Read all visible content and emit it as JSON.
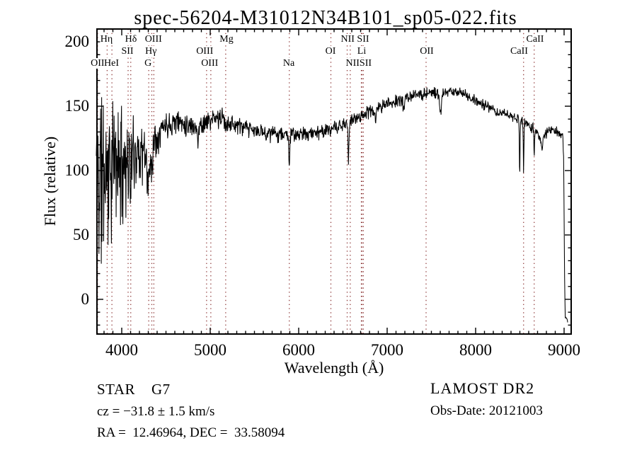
{
  "chart_data": {
    "type": "line",
    "title": "spec-56204-M31012N34B101_sp05-022.fits",
    "xlabel": "Wavelength (Å)",
    "ylabel": "Flux (relative)",
    "xlim": [
      3712,
      9088
    ],
    "ylim": [
      -27.5,
      210.5
    ],
    "xticks": [
      4000,
      5000,
      6000,
      7000,
      8000,
      9000
    ],
    "yticks": [
      0,
      50,
      100,
      150,
      200
    ],
    "x_minor_step": 100,
    "y_minor_step": 10,
    "legend": "none",
    "grid": "off",
    "colors": {
      "spectrum": "#000000",
      "line_marker": "#8b3232",
      "frame": "#000000",
      "text": "#000000",
      "background": "#ffffff"
    },
    "spectral_line_markers": [
      3727,
      3835,
      3889,
      4072,
      4102,
      4305,
      4340,
      4363,
      4959,
      5007,
      5175,
      5894,
      6364,
      6548,
      6583,
      6708,
      6716,
      6731,
      7440,
      8542,
      8662
    ],
    "spectral_line_labels": [
      {
        "text": "Hη",
        "wave": 3828,
        "row": 1
      },
      {
        "text": "Hδ",
        "wave": 4104,
        "row": 1
      },
      {
        "text": "OIII",
        "wave": 4358,
        "row": 1
      },
      {
        "text": "Mg",
        "wave": 5184,
        "row": 1
      },
      {
        "text": "NII SII",
        "wave": 6636,
        "row": 1
      },
      {
        "text": "CaII",
        "wave": 8672,
        "row": 1
      },
      {
        "text": "SII",
        "wave": 4064,
        "row": 2
      },
      {
        "text": "Hγ",
        "wave": 4330,
        "row": 2
      },
      {
        "text": "OIII",
        "wave": 4938,
        "row": 2
      },
      {
        "text": "OI",
        "wave": 6360,
        "row": 2
      },
      {
        "text": "Li",
        "wave": 6712,
        "row": 2
      },
      {
        "text": "OII",
        "wave": 7448,
        "row": 2
      },
      {
        "text": "CaII",
        "wave": 8492,
        "row": 2
      },
      {
        "text": "OII",
        "wave": 3727,
        "row": 3
      },
      {
        "text": "HeI",
        "wave": 3884,
        "row": 3
      },
      {
        "text": "G",
        "wave": 4297,
        "row": 3
      },
      {
        "text": "OIII",
        "wave": 4994,
        "row": 3
      },
      {
        "text": "Na",
        "wave": 5888,
        "row": 3
      },
      {
        "text": "NIISII",
        "wave": 6678,
        "row": 3
      }
    ],
    "spectrum_model": {
      "wave_start": 3712,
      "wave_end": 9040,
      "samples": 1400,
      "noise_seed": 11,
      "continuum": [
        [
          3712,
          108
        ],
        [
          3730,
          100
        ],
        [
          3750,
          103
        ],
        [
          3790,
          104
        ],
        [
          3830,
          104
        ],
        [
          3870,
          107
        ],
        [
          3910,
          109
        ],
        [
          3950,
          110
        ],
        [
          4000,
          112
        ],
        [
          4050,
          111
        ],
        [
          4100,
          113
        ],
        [
          4150,
          117
        ],
        [
          4200,
          118
        ],
        [
          4250,
          114
        ],
        [
          4300,
          108
        ],
        [
          4330,
          117
        ],
        [
          4370,
          125
        ],
        [
          4420,
          131
        ],
        [
          4470,
          135
        ],
        [
          4530,
          137
        ],
        [
          4600,
          139
        ],
        [
          4680,
          138
        ],
        [
          4760,
          136
        ],
        [
          4840,
          135
        ],
        [
          4920,
          137
        ],
        [
          5000,
          139
        ],
        [
          5080,
          141
        ],
        [
          5160,
          141
        ],
        [
          5240,
          137
        ],
        [
          5320,
          135
        ],
        [
          5400,
          133
        ],
        [
          5500,
          131
        ],
        [
          5600,
          130
        ],
        [
          5700,
          129
        ],
        [
          5800,
          129
        ],
        [
          5900,
          128
        ],
        [
          6000,
          128
        ],
        [
          6100,
          129
        ],
        [
          6200,
          130
        ],
        [
          6300,
          131
        ],
        [
          6400,
          133
        ],
        [
          6500,
          135
        ],
        [
          6600,
          139
        ],
        [
          6700,
          143
        ],
        [
          6800,
          146
        ],
        [
          6900,
          149
        ],
        [
          7000,
          152
        ],
        [
          7100,
          154
        ],
        [
          7200,
          156
        ],
        [
          7300,
          158
        ],
        [
          7400,
          160
        ],
        [
          7500,
          161
        ],
        [
          7600,
          159
        ],
        [
          7700,
          161
        ],
        [
          7780,
          162
        ],
        [
          7860,
          160
        ],
        [
          7940,
          157
        ],
        [
          8020,
          154
        ],
        [
          8100,
          151
        ],
        [
          8180,
          148
        ],
        [
          8260,
          146
        ],
        [
          8340,
          144
        ],
        [
          8420,
          142
        ],
        [
          8500,
          139
        ],
        [
          8580,
          136
        ],
        [
          8650,
          133
        ],
        [
          8700,
          129
        ],
        [
          8740,
          124
        ],
        [
          8780,
          127
        ],
        [
          8820,
          131
        ],
        [
          8860,
          133
        ],
        [
          8900,
          131
        ],
        [
          8950,
          129
        ],
        [
          8985,
          127
        ],
        [
          8995,
          110
        ],
        [
          9005,
          20
        ],
        [
          9012,
          -12
        ],
        [
          9040,
          -16
        ]
      ],
      "noise_amplitude": [
        [
          3712,
          80
        ],
        [
          3740,
          85
        ],
        [
          3780,
          72
        ],
        [
          3830,
          62
        ],
        [
          3880,
          56
        ],
        [
          3930,
          50
        ],
        [
          3980,
          44
        ],
        [
          4030,
          40
        ],
        [
          4080,
          34
        ],
        [
          4130,
          30
        ],
        [
          4180,
          27
        ],
        [
          4230,
          24
        ],
        [
          4280,
          21
        ],
        [
          4330,
          19
        ],
        [
          4380,
          15
        ],
        [
          4440,
          12
        ],
        [
          4520,
          11
        ],
        [
          4620,
          10
        ],
        [
          4750,
          9.5
        ],
        [
          4900,
          9
        ],
        [
          5100,
          8.5
        ],
        [
          5300,
          8
        ],
        [
          5500,
          7
        ],
        [
          5800,
          6.5
        ],
        [
          6200,
          6
        ],
        [
          6600,
          6
        ],
        [
          7000,
          5.5
        ],
        [
          7400,
          5
        ],
        [
          7800,
          5
        ],
        [
          8200,
          4.5
        ],
        [
          8600,
          5
        ],
        [
          8900,
          4.5
        ],
        [
          9000,
          3
        ],
        [
          9040,
          2
        ]
      ],
      "absorption_features": [
        [
          4102,
          16,
          10
        ],
        [
          4305,
          20,
          16
        ],
        [
          4340,
          13,
          9
        ],
        [
          4861,
          17,
          9
        ],
        [
          5175,
          7,
          12
        ],
        [
          5893,
          28,
          6
        ],
        [
          6563,
          30,
          7
        ],
        [
          6870,
          11,
          10
        ],
        [
          7186,
          7,
          10
        ],
        [
          7605,
          15,
          12
        ],
        [
          8227,
          6,
          10
        ],
        [
          8498,
          44,
          5
        ],
        [
          8542,
          38,
          5
        ],
        [
          8662,
          21,
          5
        ],
        [
          8750,
          8,
          10
        ]
      ]
    },
    "annotations": {
      "class_line": "STAR    G7",
      "cz_line": "cz = −31.8 ± 1.5 km/s",
      "radec_line": "RA =  12.46964, DEC =  33.58094",
      "survey_line": "LAMOST DR2",
      "obsdate_line": "Obs-Date: 20121003"
    }
  }
}
